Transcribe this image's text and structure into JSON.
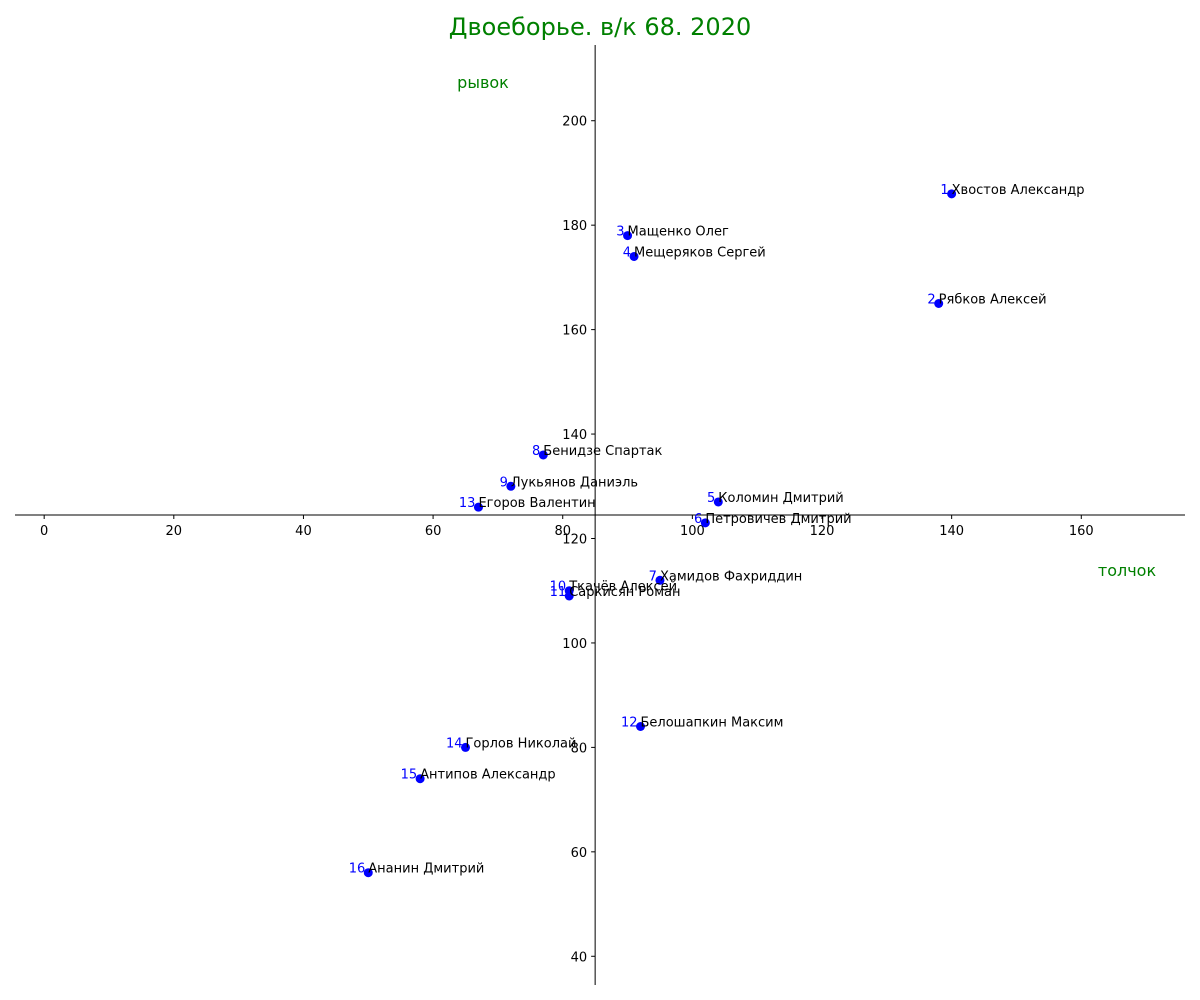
{
  "chart_data": {
    "type": "scatter",
    "title": "Двоеборье. в/к 68. 2020",
    "xlabel": "толчок",
    "ylabel": "рывок",
    "xlim": [
      -4.5,
      176
    ],
    "ylim": [
      34.5,
      214.5
    ],
    "x_origin": 85,
    "y_origin": 124.5,
    "x_ticks": [
      0,
      20,
      40,
      60,
      80,
      100,
      120,
      140,
      160
    ],
    "y_ticks": [
      40,
      60,
      80,
      100,
      120,
      140,
      160,
      180,
      200
    ],
    "grid": false,
    "colors": {
      "title": "#008000",
      "axis_label": "#008000",
      "marker": "#0000ff",
      "rank": "#0000ff",
      "name": "#000000",
      "axis": "#000000"
    },
    "points": [
      {
        "rank": "1",
        "name": "Хвостов Александр",
        "x": 140,
        "y": 186
      },
      {
        "rank": "2",
        "name": "Рябков Алексей",
        "x": 138,
        "y": 165
      },
      {
        "rank": "3",
        "name": "Мащенко Олег",
        "x": 90,
        "y": 178
      },
      {
        "rank": "4",
        "name": "Мещеряков Сергей",
        "x": 91,
        "y": 174
      },
      {
        "rank": "5",
        "name": "Коломин Дмитрий",
        "x": 104,
        "y": 127
      },
      {
        "rank": "6",
        "name": "Петровичев Дмитрий",
        "x": 102,
        "y": 123
      },
      {
        "rank": "7",
        "name": "Хамидов Фахриддин",
        "x": 95,
        "y": 112
      },
      {
        "rank": "8",
        "name": "Бенидзе Спартак",
        "x": 77,
        "y": 136
      },
      {
        "rank": "9",
        "name": "Лукьянов Даниэль",
        "x": 72,
        "y": 130
      },
      {
        "rank": "10",
        "name": "Ткачёв Алексей",
        "x": 81,
        "y": 110
      },
      {
        "rank": "11",
        "name": "Саркисян Роман",
        "x": 81,
        "y": 109
      },
      {
        "rank": "12",
        "name": "Белошапкин Максим",
        "x": 92,
        "y": 84
      },
      {
        "rank": "13",
        "name": "Егоров Валентин",
        "x": 67,
        "y": 126
      },
      {
        "rank": "14",
        "name": "Горлов Николай",
        "x": 65,
        "y": 80
      },
      {
        "rank": "15",
        "name": "Антипов Александр",
        "x": 58,
        "y": 74
      },
      {
        "rank": "16",
        "name": "Ананин Дмитрий",
        "x": 50,
        "y": 56
      }
    ]
  }
}
